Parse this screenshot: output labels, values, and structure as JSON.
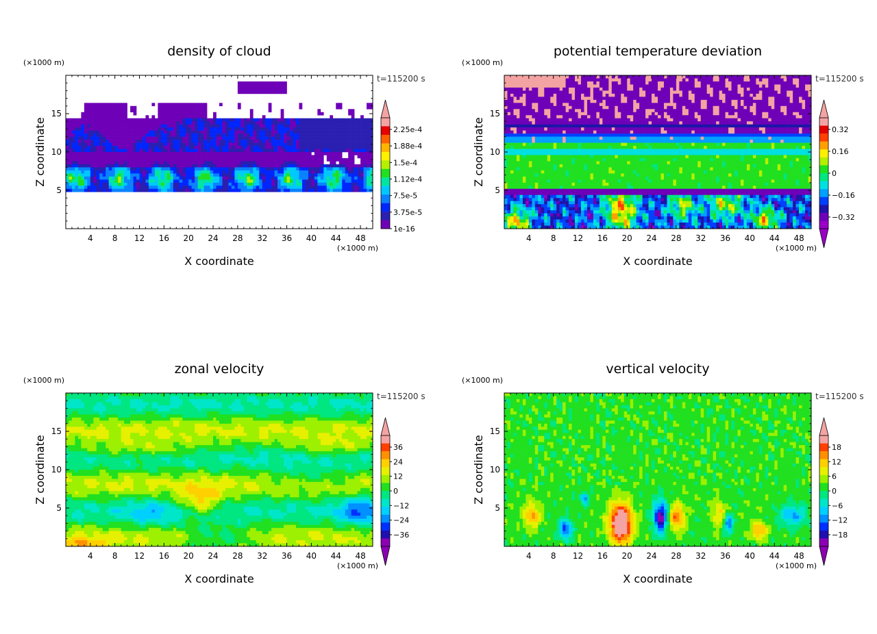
{
  "figure": {
    "colors": {
      "cloud": [
        "#6e00b8",
        "#2a1fb0",
        "#0026ff",
        "#0a82ff",
        "#00c8ff",
        "#00e6a0",
        "#20e020",
        "#b4f000",
        "#fff000",
        "#ffb400",
        "#ff6000",
        "#e60000",
        "#f4a3a3"
      ],
      "theta": [
        "#9a00c8",
        "#6e00b8",
        "#1e14a8",
        "#0040ff",
        "#00a0ff",
        "#00e0e0",
        "#00e680",
        "#20e020",
        "#b4f000",
        "#fff000",
        "#ffa000",
        "#ff4000",
        "#e00000",
        "#f4a3a3"
      ],
      "velocity": [
        "#8c00b4",
        "#2010b0",
        "#0030ff",
        "#0090ff",
        "#00d0ff",
        "#00e6c8",
        "#00e680",
        "#20e020",
        "#9cf000",
        "#e6f000",
        "#ffd000",
        "#ff9000",
        "#ff4000",
        "#f4a3a3"
      ]
    }
  },
  "chart_data": [
    {
      "type": "heatmap",
      "title": "density of cloud",
      "xlabel": "X coordinate",
      "ylabel": "Z coordinate",
      "x_unit": "(×1000 m)",
      "y_unit": "(×1000 m)",
      "time_label": "t=115200 s",
      "xlim": [
        0,
        50
      ],
      "ylim": [
        0,
        20
      ],
      "x_ticks": [
        "4",
        "8",
        "12",
        "16",
        "20",
        "24",
        "28",
        "32",
        "36",
        "40",
        "44",
        "48"
      ],
      "y_ticks": [
        "5",
        "10",
        "15"
      ],
      "colorbar": {
        "labels": [
          "2.25e-4",
          "1.88e-4",
          "1.5e-4",
          "1.12e-4",
          "7.5e-5",
          "3.75e-5",
          "1e-16"
        ],
        "extend_min": false,
        "extend_max": true
      },
      "field": "cloud"
    },
    {
      "type": "heatmap",
      "title": "potential temperature deviation",
      "xlabel": "X coordinate",
      "ylabel": "Z coordinate",
      "x_unit": "(×1000 m)",
      "y_unit": "(×1000 m)",
      "time_label": "t=115200 s",
      "xlim": [
        0,
        50
      ],
      "ylim": [
        0,
        20
      ],
      "x_ticks": [
        "4",
        "8",
        "12",
        "16",
        "20",
        "24",
        "28",
        "32",
        "36",
        "40",
        "44",
        "48"
      ],
      "y_ticks": [
        "5",
        "10",
        "15"
      ],
      "colorbar": {
        "labels": [
          "0.32",
          "0.16",
          "0",
          "−0.16",
          "−0.32"
        ],
        "extend_min": true,
        "extend_max": true
      },
      "field": "theta"
    },
    {
      "type": "heatmap",
      "title": "zonal velocity",
      "xlabel": "X coordinate",
      "ylabel": "Z coordinate",
      "x_unit": "(×1000 m)",
      "y_unit": "(×1000 m)",
      "time_label": "t=115200 s",
      "xlim": [
        0,
        50
      ],
      "ylim": [
        0,
        20
      ],
      "x_ticks": [
        "4",
        "8",
        "12",
        "16",
        "20",
        "24",
        "28",
        "32",
        "36",
        "40",
        "44",
        "48"
      ],
      "y_ticks": [
        "5",
        "10",
        "15"
      ],
      "colorbar": {
        "labels": [
          "36",
          "24",
          "12",
          "0",
          "−12",
          "−24",
          "−36"
        ],
        "extend_min": true,
        "extend_max": true
      },
      "field": "zonal"
    },
    {
      "type": "heatmap",
      "title": "vertical velocity",
      "xlabel": "X coordinate",
      "ylabel": "Z coordinate",
      "x_unit": "(×1000 m)",
      "y_unit": "(×1000 m)",
      "time_label": "t=115200 s",
      "xlim": [
        0,
        50
      ],
      "ylim": [
        0,
        20
      ],
      "x_ticks": [
        "4",
        "8",
        "12",
        "16",
        "20",
        "24",
        "28",
        "32",
        "36",
        "40",
        "44",
        "48"
      ],
      "y_ticks": [
        "5",
        "10",
        "15"
      ],
      "colorbar": {
        "labels": [
          "18",
          "12",
          "6",
          "0",
          "−6",
          "−12",
          "−18"
        ],
        "extend_min": true,
        "extend_max": true
      },
      "field": "vertical"
    }
  ]
}
